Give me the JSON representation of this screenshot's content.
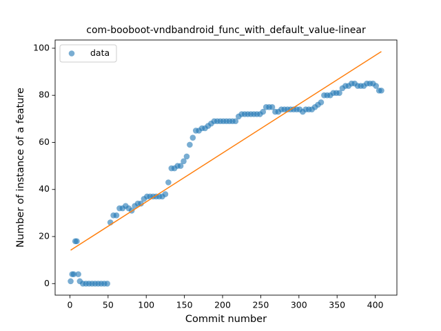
{
  "chart_data": {
    "type": "scatter",
    "title": "com-booboot-vndbandroid_func_with_default_value-linear",
    "x_label": "Commit number",
    "y_label": "Number of instance of a feature",
    "legend_position": "upper left",
    "series": [
      {
        "name": "data",
        "color": "#1f77b4",
        "opacity": 0.6,
        "x": [
          1,
          3,
          5,
          7,
          9,
          11,
          13,
          17,
          21,
          25,
          29,
          33,
          37,
          41,
          45,
          49,
          53,
          57,
          61,
          65,
          69,
          73,
          77,
          81,
          85,
          89,
          93,
          97,
          101,
          105,
          109,
          113,
          117,
          121,
          125,
          129,
          133,
          137,
          141,
          145,
          149,
          153,
          157,
          161,
          165,
          169,
          173,
          177,
          181,
          185,
          189,
          193,
          197,
          201,
          205,
          209,
          213,
          217,
          221,
          225,
          229,
          233,
          237,
          241,
          245,
          249,
          253,
          257,
          261,
          265,
          269,
          273,
          277,
          281,
          285,
          289,
          293,
          297,
          301,
          305,
          309,
          313,
          317,
          321,
          325,
          329,
          333,
          337,
          341,
          345,
          349,
          353,
          357,
          361,
          365,
          369,
          373,
          377,
          381,
          385,
          389,
          393,
          397,
          401,
          405,
          408
        ],
        "values": [
          1,
          4,
          4,
          18,
          18,
          4,
          1,
          0,
          0,
          0,
          0,
          0,
          0,
          0,
          0,
          0,
          26,
          29,
          29,
          32,
          32,
          33,
          32,
          31,
          33,
          34,
          34,
          36,
          37,
          37,
          37,
          37,
          37,
          37,
          38,
          43,
          49,
          49,
          50,
          50,
          52,
          54,
          59,
          62,
          65,
          65,
          66,
          66,
          67,
          68,
          69,
          69,
          69,
          69,
          69,
          69,
          69,
          69,
          71,
          72,
          72,
          72,
          72,
          72,
          72,
          72,
          73,
          75,
          75,
          75,
          73,
          73,
          74,
          74,
          74,
          74,
          74,
          74,
          74,
          73,
          74,
          74,
          74,
          75,
          76,
          77,
          80,
          80,
          80,
          81,
          81,
          81,
          83,
          84,
          84,
          85,
          85,
          84,
          84,
          84,
          85,
          85,
          85,
          84,
          82,
          82
        ]
      }
    ],
    "fit": {
      "color": "#ff7f0e",
      "x": [
        1,
        408
      ],
      "values": [
        14.2,
        98.6
      ]
    },
    "xlim": [
      -19.35,
      428.35
    ],
    "ylim": [
      -4.9,
      103.5
    ],
    "xticks": [
      0,
      50,
      100,
      150,
      200,
      250,
      300,
      350,
      400
    ],
    "yticks": [
      0,
      20,
      40,
      60,
      80,
      100
    ]
  }
}
